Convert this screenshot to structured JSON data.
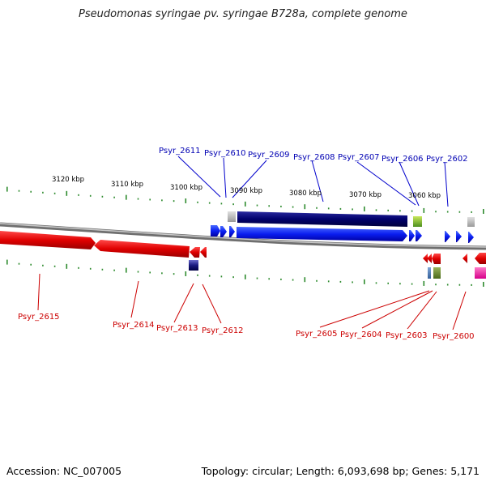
{
  "title": "Pseudomonas syringae pv. syringae B728a, complete genome",
  "footer": {
    "accession": "Accession: NC_007005",
    "summary": "Topology: circular; Length: 6,093,698 bp; Genes: 5,171"
  },
  "colors": {
    "top_label": "#0000b3",
    "bottom_label": "#cc0000",
    "tick": "#2e8b2e",
    "backbone": "#8c8c8c",
    "gene_forward": "#0000ee",
    "gene_reverse": "#dd0000",
    "gene_dark": "#000066"
  },
  "scale_labels": [
    {
      "text": "3120 kbp",
      "kbp": 3120
    },
    {
      "text": "3110 kbp",
      "kbp": 3110
    },
    {
      "text": "3100 kbp",
      "kbp": 3100
    },
    {
      "text": "3090 kbp",
      "kbp": 3090
    },
    {
      "text": "3080 kbp",
      "kbp": 3080
    },
    {
      "text": "3070 kbp",
      "kbp": 3070
    },
    {
      "text": "3060 kbp",
      "kbp": 3060
    }
  ],
  "top_labels": [
    {
      "text": "Psyr_2611"
    },
    {
      "text": "Psyr_2610"
    },
    {
      "text": "Psyr_2609"
    },
    {
      "text": "Psyr_2608"
    },
    {
      "text": "Psyr_2607"
    },
    {
      "text": "Psyr_2606"
    },
    {
      "text": "Psyr_2602"
    }
  ],
  "bottom_labels": [
    {
      "text": "Psyr_2615"
    },
    {
      "text": "Psyr_2614"
    },
    {
      "text": "Psyr_2613"
    },
    {
      "text": "Psyr_2612"
    },
    {
      "text": "Psyr_2605"
    },
    {
      "text": "Psyr_2604"
    },
    {
      "text": "Psyr_2603"
    },
    {
      "text": "Psyr_2600"
    }
  ]
}
